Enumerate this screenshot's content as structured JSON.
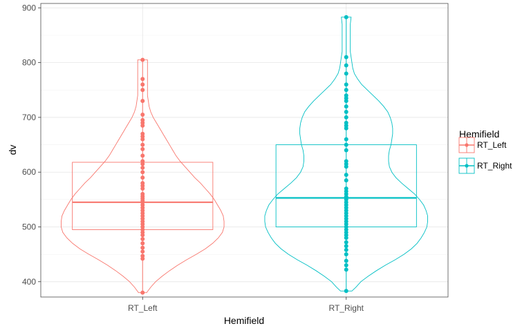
{
  "chart_data": {
    "type": "violin",
    "xlabel": "Hemifield",
    "ylabel": "dv",
    "ylim": [
      372,
      908
    ],
    "yticks": [
      400,
      500,
      600,
      700,
      800,
      900
    ],
    "categories": [
      "RT_Left",
      "RT_Right"
    ],
    "grid": true,
    "legend": {
      "title": "Hemifield",
      "position": "right",
      "entries": [
        "RT_Left",
        "RT_Right"
      ]
    },
    "series": [
      {
        "name": "RT_Left",
        "color": "#F8766D",
        "box": {
          "lower": 495,
          "median": 545,
          "upper": 618
        },
        "violin": [
          [
            380,
            0.05
          ],
          [
            390,
            0.1
          ],
          [
            400,
            0.16
          ],
          [
            410,
            0.24
          ],
          [
            420,
            0.33
          ],
          [
            430,
            0.43
          ],
          [
            440,
            0.54
          ],
          [
            450,
            0.66
          ],
          [
            460,
            0.77
          ],
          [
            470,
            0.86
          ],
          [
            480,
            0.93
          ],
          [
            490,
            0.98
          ],
          [
            500,
            1.0
          ],
          [
            510,
            1.0
          ],
          [
            520,
            0.99
          ],
          [
            530,
            0.96
          ],
          [
            540,
            0.92
          ],
          [
            550,
            0.88
          ],
          [
            560,
            0.83
          ],
          [
            570,
            0.77
          ],
          [
            580,
            0.71
          ],
          [
            590,
            0.64
          ],
          [
            600,
            0.58
          ],
          [
            610,
            0.52
          ],
          [
            620,
            0.46
          ],
          [
            630,
            0.41
          ],
          [
            640,
            0.37
          ],
          [
            650,
            0.33
          ],
          [
            660,
            0.29
          ],
          [
            670,
            0.25
          ],
          [
            680,
            0.21
          ],
          [
            690,
            0.17
          ],
          [
            700,
            0.13
          ],
          [
            710,
            0.1
          ],
          [
            720,
            0.08
          ],
          [
            730,
            0.07
          ],
          [
            740,
            0.06
          ],
          [
            750,
            0.06
          ],
          [
            760,
            0.06
          ],
          [
            770,
            0.06
          ],
          [
            780,
            0.06
          ],
          [
            790,
            0.06
          ],
          [
            800,
            0.06
          ],
          [
            805,
            0.06
          ]
        ],
        "points": [
          380,
          442,
          447,
          455,
          462,
          470,
          478,
          485,
          490,
          495,
          500,
          505,
          510,
          515,
          520,
          525,
          530,
          535,
          540,
          545,
          548,
          552,
          556,
          560,
          570,
          575,
          580,
          590,
          600,
          608,
          615,
          620,
          630,
          642,
          650,
          660,
          665,
          670,
          685,
          690,
          695,
          705,
          730,
          750,
          760,
          770,
          805
        ]
      },
      {
        "name": "RT_Right",
        "color": "#00BFC4",
        "box": {
          "lower": 500,
          "median": 553,
          "upper": 650
        },
        "violin": [
          [
            383,
            0.07
          ],
          [
            390,
            0.12
          ],
          [
            400,
            0.18
          ],
          [
            410,
            0.27
          ],
          [
            420,
            0.37
          ],
          [
            430,
            0.48
          ],
          [
            440,
            0.6
          ],
          [
            450,
            0.71
          ],
          [
            460,
            0.8
          ],
          [
            470,
            0.87
          ],
          [
            480,
            0.92
          ],
          [
            490,
            0.96
          ],
          [
            500,
            0.99
          ],
          [
            510,
            1.0
          ],
          [
            520,
            1.0
          ],
          [
            530,
            0.98
          ],
          [
            540,
            0.95
          ],
          [
            550,
            0.9
          ],
          [
            560,
            0.84
          ],
          [
            570,
            0.76
          ],
          [
            580,
            0.68
          ],
          [
            590,
            0.61
          ],
          [
            600,
            0.56
          ],
          [
            610,
            0.53
          ],
          [
            620,
            0.52
          ],
          [
            630,
            0.52
          ],
          [
            640,
            0.53
          ],
          [
            650,
            0.55
          ],
          [
            660,
            0.56
          ],
          [
            670,
            0.57
          ],
          [
            680,
            0.57
          ],
          [
            690,
            0.56
          ],
          [
            700,
            0.54
          ],
          [
            710,
            0.51
          ],
          [
            720,
            0.46
          ],
          [
            730,
            0.4
          ],
          [
            740,
            0.33
          ],
          [
            750,
            0.26
          ],
          [
            760,
            0.19
          ],
          [
            770,
            0.14
          ],
          [
            780,
            0.1
          ],
          [
            790,
            0.08
          ],
          [
            800,
            0.07
          ],
          [
            810,
            0.06
          ],
          [
            820,
            0.05
          ],
          [
            830,
            0.05
          ],
          [
            840,
            0.05
          ],
          [
            850,
            0.05
          ],
          [
            860,
            0.05
          ],
          [
            870,
            0.05
          ],
          [
            883,
            0.06
          ]
        ],
        "points": [
          383,
          422,
          430,
          438,
          450,
          458,
          465,
          472,
          480,
          485,
          490,
          495,
          500,
          505,
          510,
          515,
          520,
          525,
          530,
          535,
          540,
          545,
          550,
          555,
          560,
          565,
          570,
          585,
          595,
          610,
          615,
          620,
          640,
          650,
          660,
          680,
          685,
          690,
          700,
          710,
          720,
          730,
          735,
          740,
          750,
          760,
          780,
          795,
          810,
          883
        ]
      }
    ]
  }
}
